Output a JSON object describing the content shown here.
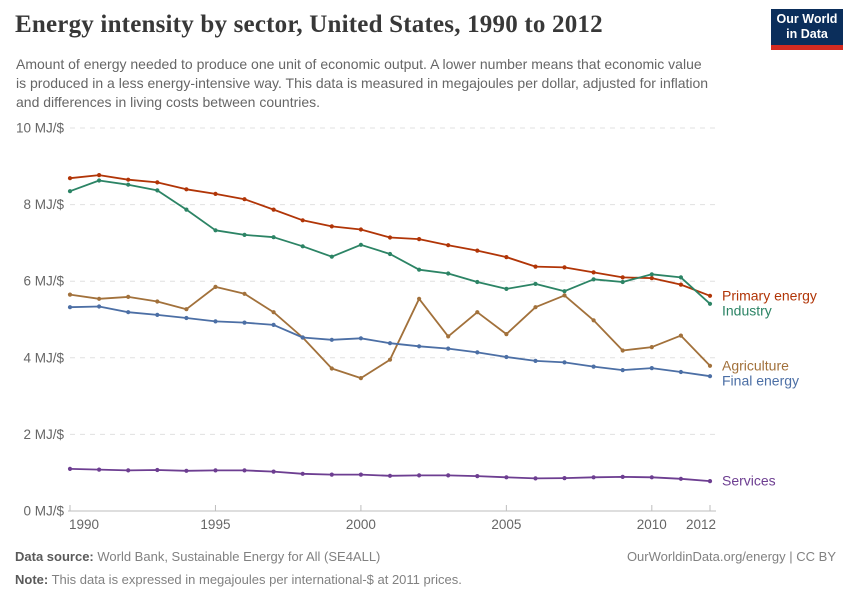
{
  "header": {
    "title": "Energy intensity by sector, United States, 1990 to 2012",
    "subtitle_lines": [
      "Amount of energy needed to produce one unit of economic output. A lower number means that economic value",
      "is produced in a less energy-intensive way. This data is measured in megajoules per dollar, adjusted for inflation",
      "and differences in living costs between countries."
    ],
    "logo": {
      "line1": "Our World",
      "line2": "in Data",
      "bg_color": "#0b2e5b",
      "stripe_color": "#d42b21"
    }
  },
  "chart_data": {
    "type": "line",
    "title": "Energy intensity by sector, United States, 1990 to 2012",
    "unit": "MJ/$",
    "x": [
      1990,
      1991,
      1992,
      1993,
      1994,
      1995,
      1996,
      1997,
      1998,
      1999,
      2000,
      2001,
      2002,
      2003,
      2004,
      2005,
      2006,
      2007,
      2008,
      2009,
      2010,
      2011,
      2012
    ],
    "series": [
      {
        "name": "Primary energy",
        "color": "#B13507",
        "values": [
          8.69,
          8.77,
          8.65,
          8.58,
          8.4,
          8.28,
          8.14,
          7.87,
          7.59,
          7.43,
          7.35,
          7.14,
          7.1,
          6.94,
          6.8,
          6.63,
          6.38,
          6.36,
          6.23,
          6.1,
          6.08,
          5.91,
          5.62
        ]
      },
      {
        "name": "Industry",
        "color": "#2C8465",
        "values": [
          8.35,
          8.63,
          8.52,
          8.37,
          7.87,
          7.33,
          7.21,
          7.15,
          6.91,
          6.64,
          6.95,
          6.71,
          6.3,
          6.2,
          5.98,
          5.8,
          5.93,
          5.74,
          6.05,
          5.98,
          6.18,
          6.1,
          5.41
        ]
      },
      {
        "name": "Agriculture",
        "color": "#A2713B",
        "values": [
          5.65,
          5.54,
          5.59,
          5.47,
          5.27,
          5.85,
          5.67,
          5.19,
          4.53,
          3.72,
          3.47,
          3.95,
          5.54,
          4.56,
          5.19,
          4.62,
          5.32,
          5.63,
          4.98,
          4.19,
          4.28,
          4.58,
          3.79
        ]
      },
      {
        "name": "Final energy",
        "color": "#4C6FA5",
        "values": [
          5.32,
          5.34,
          5.19,
          5.12,
          5.04,
          4.95,
          4.92,
          4.86,
          4.53,
          4.47,
          4.51,
          4.38,
          4.3,
          4.24,
          4.14,
          4.02,
          3.92,
          3.88,
          3.77,
          3.68,
          3.73,
          3.63,
          3.52
        ]
      },
      {
        "name": "Services",
        "color": "#6D3E91",
        "values": [
          1.1,
          1.08,
          1.06,
          1.07,
          1.05,
          1.06,
          1.06,
          1.03,
          0.97,
          0.95,
          0.95,
          0.92,
          0.93,
          0.93,
          0.91,
          0.88,
          0.85,
          0.86,
          0.88,
          0.89,
          0.88,
          0.84,
          0.78
        ]
      }
    ],
    "ylim": [
      0,
      10
    ],
    "yticks": [
      0,
      2,
      4,
      6,
      8,
      10
    ],
    "ytick_suffix": " MJ/$",
    "xticks": [
      1990,
      1995,
      2000,
      2005,
      2010,
      2012
    ],
    "grid": "horizontal-dashed",
    "legend_position": "right-end-labels",
    "colors": {
      "grid": "#e0e0e0",
      "axis": "#bdbdbd",
      "tick_text": "#666666"
    }
  },
  "footer": {
    "source_label": "Data source:",
    "source_text": " World Bank, Sustainable Energy for All (SE4ALL)",
    "note_label": "Note:",
    "note_text": " This data is expressed in megajoules per international-$ at 2011 prices.",
    "credit": "OurWorldinData.org/energy | CC BY"
  }
}
